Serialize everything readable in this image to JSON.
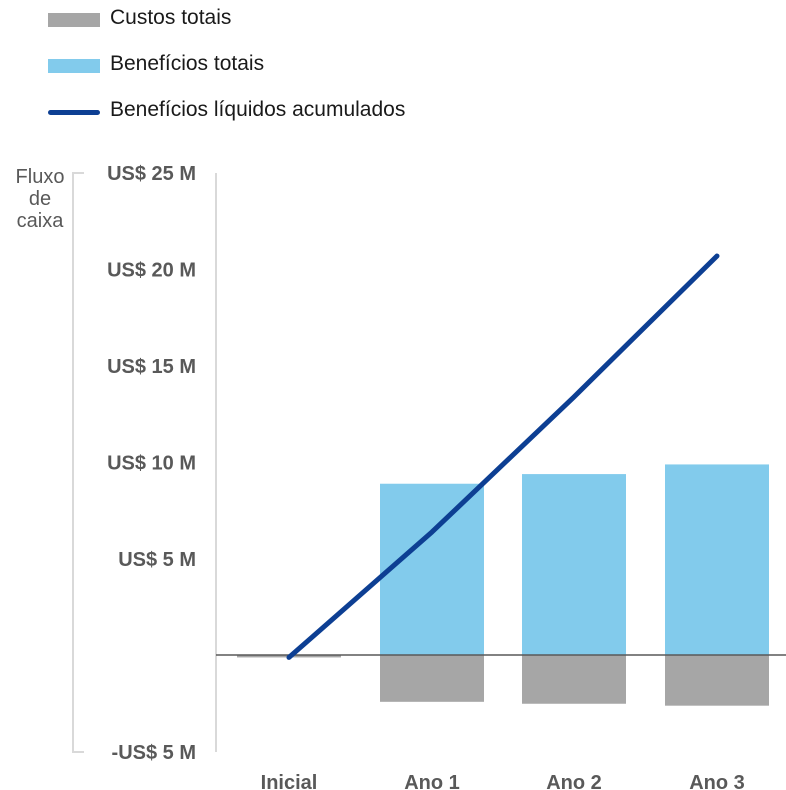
{
  "chart_data": {
    "type": "bar",
    "categories": [
      "Inicial",
      "Ano 1",
      "Ano 2",
      "Ano 3"
    ],
    "ylabel": [
      "Fluxo",
      "de",
      "caixa"
    ],
    "yticks": [
      {
        "value": 25,
        "label": "US$ 25 M"
      },
      {
        "value": 20,
        "label": "US$ 20 M"
      },
      {
        "value": 15,
        "label": "US$ 15 M"
      },
      {
        "value": 10,
        "label": "US$ 10 M"
      },
      {
        "value": 5,
        "label": "US$ 5 M"
      },
      {
        "value": -5,
        "label": "-US$ 5 M"
      }
    ],
    "ylim": [
      -5,
      25
    ],
    "legend_position": "top-left",
    "series": [
      {
        "name": "Custos totais",
        "type": "bar",
        "color": "#a6a6a6",
        "values": [
          -0.1,
          -2.4,
          -2.5,
          -2.6
        ]
      },
      {
        "name": "Benefícios totais",
        "type": "bar",
        "color": "#82cbec",
        "values": [
          0,
          8.9,
          9.4,
          9.9
        ]
      },
      {
        "name": "Benefícios líquidos acumulados",
        "type": "line",
        "color": "#0d3f93",
        "values": [
          -0.1,
          6.4,
          13.4,
          20.7
        ]
      }
    ]
  }
}
